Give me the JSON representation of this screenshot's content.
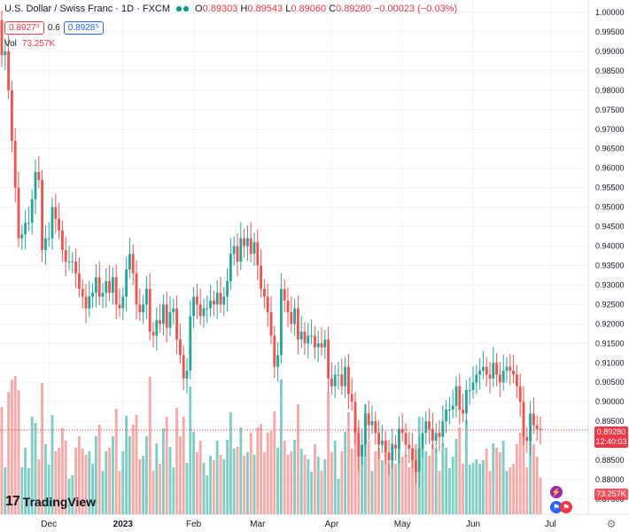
{
  "legend": {
    "symbol": "U.S. Dollar / Swiss Franc · 1D · FXCM",
    "open_label": "O",
    "open": "0.89303",
    "high_label": "H",
    "high": "0.89543",
    "low_label": "L",
    "low": "0.89060",
    "close_label": "C",
    "close": "0.89280",
    "change": "−0.00023 (−0.03%)",
    "sell": "0.8927⁹",
    "spread": "0.6",
    "buy": "0.8928⁵",
    "vol_label": "Vol",
    "vol_value": "73.257K",
    "status_colors": [
      "#089981",
      "#089981"
    ]
  },
  "price_tag": {
    "price": "0.89280",
    "countdown": "12:40:03"
  },
  "volume_tag": "73.257K",
  "brand": "TradingView",
  "colors": {
    "up": "#26a69a",
    "down": "#ef5350",
    "up_vol": "#7fcdc4",
    "down_vol": "#f7a9a7",
    "grid": "#f0f3fa",
    "last": "#f23645"
  },
  "chart_data": {
    "type": "candlestick",
    "title": "U.S. Dollar / Swiss Franc · 1D · FXCM",
    "ylim": [
      0.8705,
      1.0015
    ],
    "y_ticks": [
      "1.00000",
      "0.99500",
      "0.99000",
      "0.98500",
      "0.98000",
      "0.97500",
      "0.97000",
      "0.96500",
      "0.96000",
      "0.95500",
      "0.95000",
      "0.94500",
      "0.94000",
      "0.93500",
      "0.93000",
      "0.92500",
      "0.92000",
      "0.91500",
      "0.91000",
      "0.90500",
      "0.90000",
      "0.89500",
      "0.89000",
      "0.88500",
      "0.88000",
      "0.87500"
    ],
    "x_labels": [
      "Dec",
      "2023",
      "Feb",
      "Mar",
      "Apr",
      "May",
      "Jun",
      "Jul"
    ],
    "x_label_index": [
      14,
      36,
      57,
      76,
      98,
      119,
      140,
      163
    ],
    "last_close": 0.8928,
    "closes": [
      0.989,
      0.99,
      0.98,
      0.967,
      0.955,
      0.942,
      0.943,
      0.946,
      0.946,
      0.952,
      0.959,
      0.957,
      0.939,
      0.942,
      0.942,
      0.95,
      0.947,
      0.944,
      0.939,
      0.936,
      0.936,
      0.936,
      0.933,
      0.929,
      0.927,
      0.924,
      0.927,
      0.928,
      0.932,
      0.927,
      0.928,
      0.931,
      0.928,
      0.932,
      0.925,
      0.924,
      0.927,
      0.934,
      0.938,
      0.933,
      0.925,
      0.923,
      0.925,
      0.929,
      0.918,
      0.917,
      0.921,
      0.92,
      0.925,
      0.919,
      0.923,
      0.924,
      0.916,
      0.912,
      0.906,
      0.908,
      0.922,
      0.927,
      0.925,
      0.922,
      0.924,
      0.924,
      0.926,
      0.925,
      0.928,
      0.925,
      0.927,
      0.931,
      0.938,
      0.94,
      0.936,
      0.942,
      0.94,
      0.942,
      0.938,
      0.941,
      0.935,
      0.929,
      0.927,
      0.923,
      0.917,
      0.909,
      0.912,
      0.929,
      0.926,
      0.923,
      0.92,
      0.924,
      0.916,
      0.918,
      0.915,
      0.917,
      0.917,
      0.914,
      0.915,
      0.914,
      0.916,
      0.906,
      0.904,
      0.907,
      0.907,
      0.904,
      0.909,
      0.902,
      0.9,
      0.892,
      0.886,
      0.889,
      0.897,
      0.894,
      0.895,
      0.892,
      0.889,
      0.89,
      0.887,
      0.885,
      0.889,
      0.888,
      0.893,
      0.892,
      0.889,
      0.888,
      0.885,
      0.882,
      0.888,
      0.892,
      0.895,
      0.893,
      0.89,
      0.892,
      0.891,
      0.895,
      0.898,
      0.898,
      0.899,
      0.904,
      0.898,
      0.897,
      0.903,
      0.903,
      0.905,
      0.907,
      0.908,
      0.909,
      0.907,
      0.906,
      0.91,
      0.907,
      0.905,
      0.908,
      0.909,
      0.908,
      0.907,
      0.904,
      0.9,
      0.891,
      0.89,
      0.897,
      0.894,
      0.893,
      0.8928
    ],
    "volume_note": "relative"
  }
}
